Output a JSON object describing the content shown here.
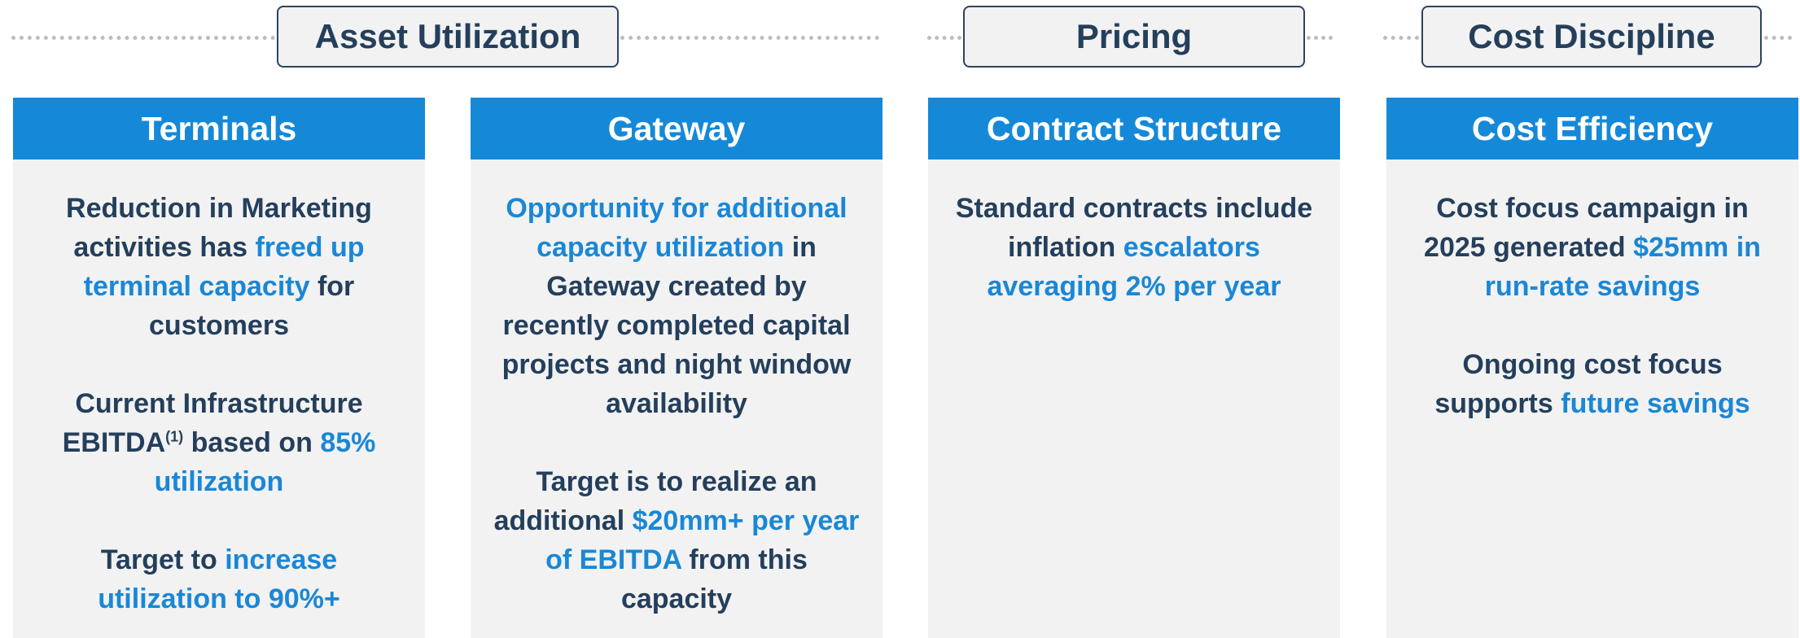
{
  "groups": [
    {
      "label": "Asset Utilization"
    },
    {
      "label": "Pricing"
    },
    {
      "label": "Cost Discipline"
    }
  ],
  "columns": [
    {
      "title": "Terminals",
      "paragraphs": [
        [
          {
            "text": "Reduction in Marketing activities has ",
            "highlight": false
          },
          {
            "text": "freed up terminal capacity",
            "highlight": true
          },
          {
            "text": " for customers",
            "highlight": false
          }
        ],
        [
          {
            "text": "Current Infrastructure EBITDA",
            "highlight": false
          },
          {
            "text": "(1)",
            "highlight": false,
            "sup": true
          },
          {
            "text": " based on ",
            "highlight": false
          },
          {
            "text": "85% utilization",
            "highlight": true
          }
        ],
        [
          {
            "text": "Target to ",
            "highlight": false
          },
          {
            "text": "increase utilization to 90%+",
            "highlight": true
          }
        ]
      ]
    },
    {
      "title": "Gateway",
      "paragraphs": [
        [
          {
            "text": "Opportunity for additional capacity utilization",
            "highlight": true
          },
          {
            "text": " in Gateway created by recently completed capital projects and night window availability",
            "highlight": false
          }
        ],
        [
          {
            "text": "Target is to realize an additional ",
            "highlight": false
          },
          {
            "text": "$20mm+ per year of EBITDA",
            "highlight": true
          },
          {
            "text": " from this capacity",
            "highlight": false
          }
        ]
      ]
    },
    {
      "title": "Contract Structure",
      "paragraphs": [
        [
          {
            "text": "Standard contracts include inflation ",
            "highlight": false
          },
          {
            "text": "escalators averaging 2% per year",
            "highlight": true
          }
        ]
      ]
    },
    {
      "title": "Cost Efficiency",
      "paragraphs": [
        [
          {
            "text": "Cost focus campaign in 2025 generated ",
            "highlight": false
          },
          {
            "text": "$25mm in run-rate savings",
            "highlight": true
          }
        ],
        [
          {
            "text": "Ongoing cost focus supports ",
            "highlight": false
          },
          {
            "text": "future savings",
            "highlight": true
          }
        ]
      ]
    }
  ]
}
